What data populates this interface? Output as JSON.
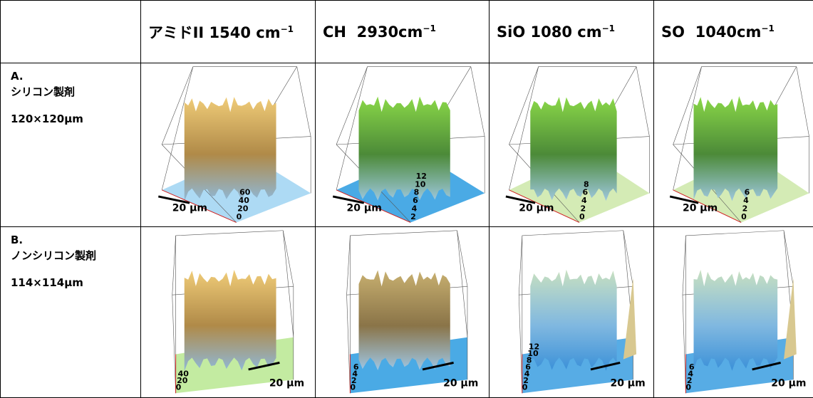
{
  "header": {
    "columns": [
      {
        "text": "アミドII 1540 cm",
        "sup": "−1"
      },
      {
        "text": "CH  2930cm",
        "sup": "−1"
      },
      {
        "text": "SiO 1080 cm",
        "sup": "−1"
      },
      {
        "text": "SO  1040cm",
        "sup": "−1"
      }
    ]
  },
  "rows": [
    {
      "label": "A.",
      "name": "シリコン製剤",
      "size": "120×120μm",
      "cells": [
        {
          "scale": "20 μm",
          "zticks": [
            "60",
            "40",
            "20",
            "0"
          ]
        },
        {
          "scale": "20 μm",
          "zticks": [
            "12",
            "10",
            "8",
            "6",
            "4",
            "2"
          ]
        },
        {
          "scale": "20 μm",
          "zticks": [
            "8",
            "6",
            "4",
            "2",
            "0"
          ]
        },
        {
          "scale": "20 μm",
          "zticks": [
            "6",
            "4",
            "2",
            "0"
          ]
        }
      ]
    },
    {
      "label": "B.",
      "name": "ノンシリコン製剤",
      "size": "114×114μm",
      "cells": [
        {
          "scale": "20 μm",
          "zticks": [
            "40",
            "20",
            "0"
          ]
        },
        {
          "scale": "20 μm",
          "zticks": [
            "6",
            "4",
            "2",
            "0"
          ]
        },
        {
          "scale": "20 μm",
          "zticks": [
            "12",
            "10",
            "8",
            "6",
            "4",
            "2",
            "0"
          ]
        },
        {
          "scale": "20 μm",
          "zticks": [
            "6",
            "4",
            "2",
            "0"
          ]
        }
      ]
    }
  ]
}
